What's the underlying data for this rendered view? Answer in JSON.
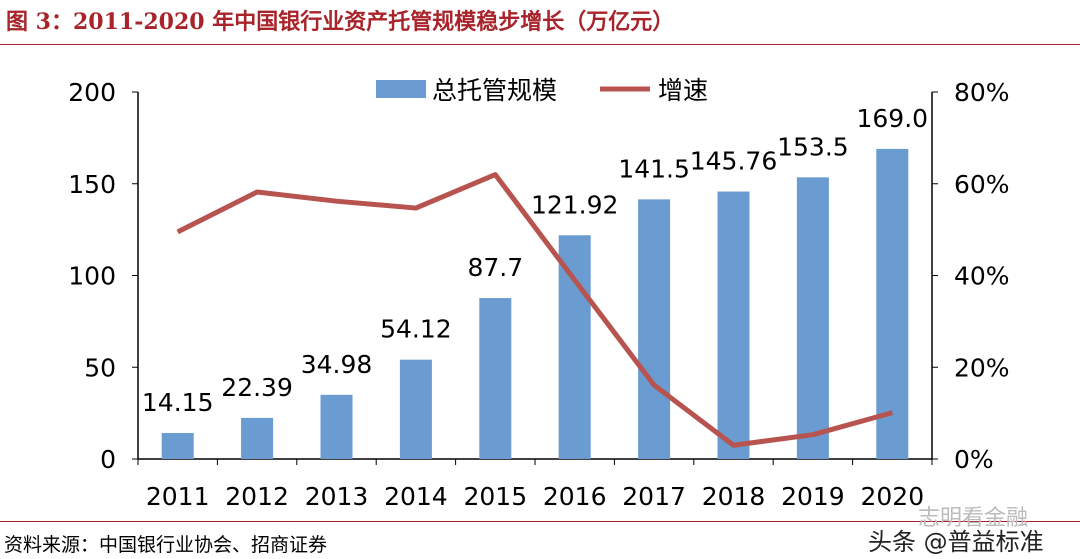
{
  "title": "图 3：2011-2020 年中国银行业资产托管规模稳步增长（万亿元）",
  "source": "资料来源：中国银行业协会、招商证券",
  "watermarks": [
    "志明看金融",
    "头条 @普益标准"
  ],
  "colors": {
    "bar": "#6a9bd1",
    "line": "#b85450",
    "title": "#a8242a"
  },
  "chart_data": {
    "type": "bar+line",
    "categories": [
      "2011",
      "2012",
      "2013",
      "2014",
      "2015",
      "2016",
      "2017",
      "2018",
      "2019",
      "2020"
    ],
    "series": [
      {
        "name": "总托管规模",
        "type": "bar",
        "axis": "left",
        "values": [
          14.15,
          22.39,
          34.98,
          54.12,
          87.7,
          121.92,
          141.5,
          145.76,
          153.5,
          169.0
        ],
        "labels": [
          "14.15",
          "22.39",
          "34.98",
          "54.12",
          "87.7",
          "121.92",
          "141.5",
          "145.76",
          "153.5",
          "169.0"
        ]
      },
      {
        "name": "增速",
        "type": "line",
        "axis": "right",
        "values": [
          49.5,
          58.2,
          56.2,
          54.7,
          62.0,
          39.0,
          16.1,
          3.0,
          5.3,
          10.1
        ]
      }
    ],
    "y_left": {
      "range": [
        0,
        200
      ],
      "ticks": [
        "0",
        "50",
        "100",
        "150",
        "200"
      ]
    },
    "y_right": {
      "range": [
        0,
        80
      ],
      "ticks": [
        "0%",
        "20%",
        "40%",
        "60%",
        "80%"
      ]
    },
    "legend": "top-center",
    "grid": false
  }
}
